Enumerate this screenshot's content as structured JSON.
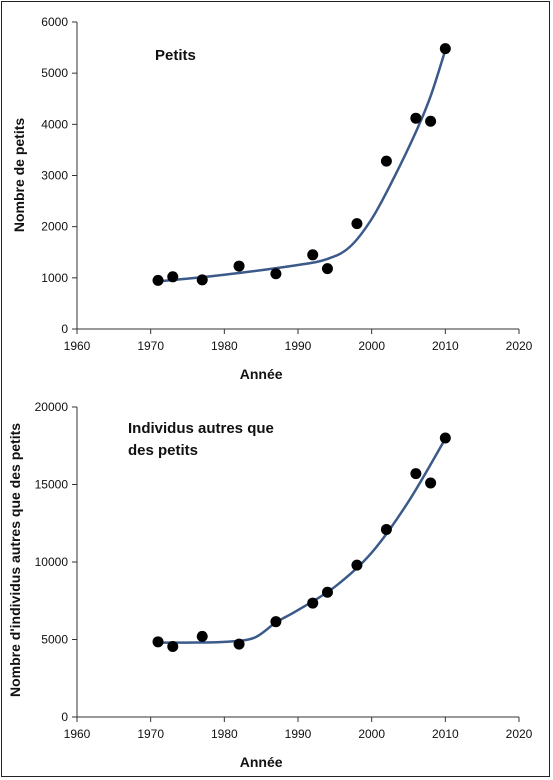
{
  "chart_data": [
    {
      "type": "scatter",
      "title": "Petits",
      "xlabel": "Année",
      "ylabel": "Nombre de petits",
      "xlim": [
        1960,
        2020
      ],
      "ylim": [
        0,
        6000
      ],
      "xticks": [
        "1960",
        "1970",
        "1980",
        "1990",
        "2000",
        "2010",
        "2020"
      ],
      "yticks": [
        "0",
        "1000",
        "2000",
        "3000",
        "4000",
        "5000",
        "6000"
      ],
      "points": [
        {
          "x": 1971,
          "y": 950
        },
        {
          "x": 1973,
          "y": 1020
        },
        {
          "x": 1977,
          "y": 960
        },
        {
          "x": 1982,
          "y": 1230
        },
        {
          "x": 1987,
          "y": 1080
        },
        {
          "x": 1992,
          "y": 1450
        },
        {
          "x": 1994,
          "y": 1180
        },
        {
          "x": 1998,
          "y": 2060
        },
        {
          "x": 2002,
          "y": 3280
        },
        {
          "x": 2006,
          "y": 4120
        },
        {
          "x": 2008,
          "y": 4060
        },
        {
          "x": 2010,
          "y": 5480
        }
      ],
      "trend": [
        {
          "x": 1971,
          "y": 930
        },
        {
          "x": 1980,
          "y": 1060
        },
        {
          "x": 1990,
          "y": 1250
        },
        {
          "x": 1994,
          "y": 1370
        },
        {
          "x": 1997,
          "y": 1600
        },
        {
          "x": 2000,
          "y": 2150
        },
        {
          "x": 2003,
          "y": 2950
        },
        {
          "x": 2006,
          "y": 3850
        },
        {
          "x": 2008,
          "y": 4550
        },
        {
          "x": 2010,
          "y": 5450
        }
      ],
      "grid": false,
      "colors": {
        "points": "#000000",
        "line": "#3b5a8a"
      }
    },
    {
      "type": "scatter",
      "title": "Individus autres que des petits",
      "title_lines": [
        "Individus autres que",
        "des petits"
      ],
      "xlabel": "Année",
      "ylabel": "Nombre d'individus autres que des petits",
      "xlim": [
        1960,
        2020
      ],
      "ylim": [
        0,
        20000
      ],
      "xticks": [
        "1960",
        "1970",
        "1980",
        "1990",
        "2000",
        "2010",
        "2020"
      ],
      "yticks": [
        "0",
        "5000",
        "10000",
        "15000",
        "20000"
      ],
      "points": [
        {
          "x": 1971,
          "y": 4850
        },
        {
          "x": 1973,
          "y": 4550
        },
        {
          "x": 1977,
          "y": 5200
        },
        {
          "x": 1982,
          "y": 4700
        },
        {
          "x": 1987,
          "y": 6150
        },
        {
          "x": 1992,
          "y": 7350
        },
        {
          "x": 1994,
          "y": 8050
        },
        {
          "x": 1998,
          "y": 9800
        },
        {
          "x": 2002,
          "y": 12100
        },
        {
          "x": 2006,
          "y": 15700
        },
        {
          "x": 2008,
          "y": 15100
        },
        {
          "x": 2010,
          "y": 18000
        }
      ],
      "trend": [
        {
          "x": 1971,
          "y": 4800
        },
        {
          "x": 1975,
          "y": 4800
        },
        {
          "x": 1980,
          "y": 4850
        },
        {
          "x": 1984,
          "y": 5100
        },
        {
          "x": 1987,
          "y": 6100
        },
        {
          "x": 1990,
          "y": 6900
        },
        {
          "x": 1995,
          "y": 8400
        },
        {
          "x": 2000,
          "y": 10600
        },
        {
          "x": 2005,
          "y": 13900
        },
        {
          "x": 2010,
          "y": 17950
        }
      ],
      "grid": false,
      "colors": {
        "points": "#000000",
        "line": "#3b5a8a"
      }
    }
  ]
}
